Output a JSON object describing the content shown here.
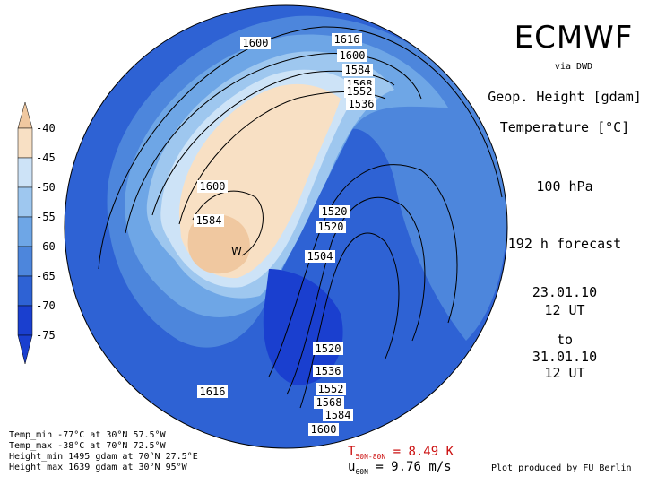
{
  "header": {
    "title": "ECMWF",
    "source": "via DWD",
    "field1": "Geop. Height [gdam]",
    "field2": "Temperature [°C]",
    "level": "100 hPa",
    "forecast": "192 h forecast",
    "init_date": "23.01.10",
    "init_time": "12 UT",
    "to_label": "to",
    "valid_date": "31.01.10",
    "valid_time": "12 UT"
  },
  "colorbar": {
    "ticks": [
      "-40",
      "-45",
      "-50",
      "-55",
      "-60",
      "-65",
      "-70",
      "-75"
    ],
    "colors": [
      "#f0c8a0",
      "#f8e0c4",
      "#cde3f7",
      "#9ec7ef",
      "#6ea6e6",
      "#4d86dc",
      "#2e62d4",
      "#1a3fcf"
    ]
  },
  "map": {
    "ocean_color": "#2e62d4",
    "contour_labels": [
      "1600",
      "1616",
      "1600",
      "1584",
      "1568",
      "1552",
      "1536",
      "1600",
      "1584",
      "1520",
      "1520",
      "1504",
      "1520",
      "1536",
      "1552",
      "1568",
      "1584",
      "1600",
      "1616"
    ],
    "warm_marker": "W"
  },
  "footer": {
    "stats": [
      "Temp_min -77°C at 30°N 57.5°W",
      "Temp_max -38°C at 70°N 72.5°W",
      "Height_min 1495 gdam at 70°N 27.5°E",
      "Height_max 1639 gdam at 30°N 95°W"
    ],
    "tdiff_label": "T",
    "tdiff_sub": "50N-80N",
    "tdiff_value": " = 8.49 K",
    "wspd_label": "u",
    "wspd_sub": "60N",
    "wspd_value": " = 9.76 m/s",
    "credit": "Plot produced by FU Berlin"
  }
}
